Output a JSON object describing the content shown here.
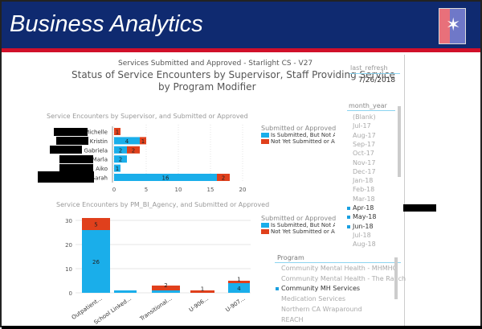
{
  "header": {
    "title": "Business Analytics"
  },
  "report": {
    "subtitle": "Services Submitted and Approved - Starlight CS - V27",
    "title_line1": "Status of Service Encounters by Supervisor, Staff Providing Service",
    "title_line2": "by Program Modifier"
  },
  "refresh": {
    "label": "last_refresh",
    "value": "7/26/2018"
  },
  "month_slicer": {
    "label": "month_year",
    "items": [
      {
        "t": "(Blank)",
        "s": false
      },
      {
        "t": "Jul-17",
        "s": false
      },
      {
        "t": "Aug-17",
        "s": false
      },
      {
        "t": "Sep-17",
        "s": false
      },
      {
        "t": "Oct-17",
        "s": false
      },
      {
        "t": "Nov-17",
        "s": false
      },
      {
        "t": "Dec-17",
        "s": false
      },
      {
        "t": "Jan-18",
        "s": false
      },
      {
        "t": "Feb-18",
        "s": false
      },
      {
        "t": "Mar-18",
        "s": false
      },
      {
        "t": "Apr-18",
        "s": true
      },
      {
        "t": "May-18",
        "s": true
      },
      {
        "t": "Jun-18",
        "s": true
      },
      {
        "t": "Jul-18",
        "s": false
      },
      {
        "t": "Aug-18",
        "s": false
      }
    ]
  },
  "program_slicer": {
    "label": "Program",
    "items": [
      {
        "t": "Community Mental Health - MHMHC",
        "s": false
      },
      {
        "t": "Community Mental Health - The Ranch",
        "s": false
      },
      {
        "t": "Community MH Services",
        "s": true
      },
      {
        "t": "Medication Services",
        "s": false
      },
      {
        "t": "Northern CA Wraparound",
        "s": false
      },
      {
        "t": "REACH",
        "s": false
      }
    ]
  },
  "colors": {
    "submitted": "#1aaeea",
    "not_submitted": "#e0401c"
  },
  "chart_data": [
    {
      "type": "bar",
      "orientation": "horizontal",
      "stacked": true,
      "title": "Service Encounters by Supervisor, and Submitted or Approved",
      "legend_title": "Submitted or Approved",
      "legend_position": "right",
      "categories": [
        "Michelle",
        ", Kristin",
        "C z, Gabriela",
        "Marla",
        ", Aiko",
        "Sarah"
      ],
      "series": [
        {
          "name": "Is Submitted, But Not Approved",
          "values": [
            0,
            4,
            2,
            2,
            1,
            16
          ]
        },
        {
          "name": "Not Yet Submitted or Approved",
          "values": [
            1,
            1,
            2,
            0,
            0,
            2
          ]
        }
      ],
      "xlim": [
        0,
        20
      ],
      "xticks": [
        0,
        5,
        10,
        15,
        20
      ],
      "grid": true
    },
    {
      "type": "bar",
      "orientation": "vertical",
      "stacked": true,
      "title": "Service Encounters by PM_BI_Agency, and Submitted or Approved",
      "legend_title": "Submitted or Approved",
      "legend_position": "right",
      "categories": [
        "Outpatient...",
        "School Linked...",
        "Transitional...",
        "U-906...",
        "U-907..."
      ],
      "series": [
        {
          "name": "Is Submitted, But Not Approved",
          "values": [
            26,
            1,
            1,
            0,
            4
          ]
        },
        {
          "name": "Not Yet Submitted or Approved",
          "values": [
            5,
            0,
            2,
            1,
            1
          ]
        }
      ],
      "ylim": [
        0,
        30
      ],
      "yticks": [
        0,
        10,
        20,
        30
      ],
      "grid": true
    }
  ]
}
